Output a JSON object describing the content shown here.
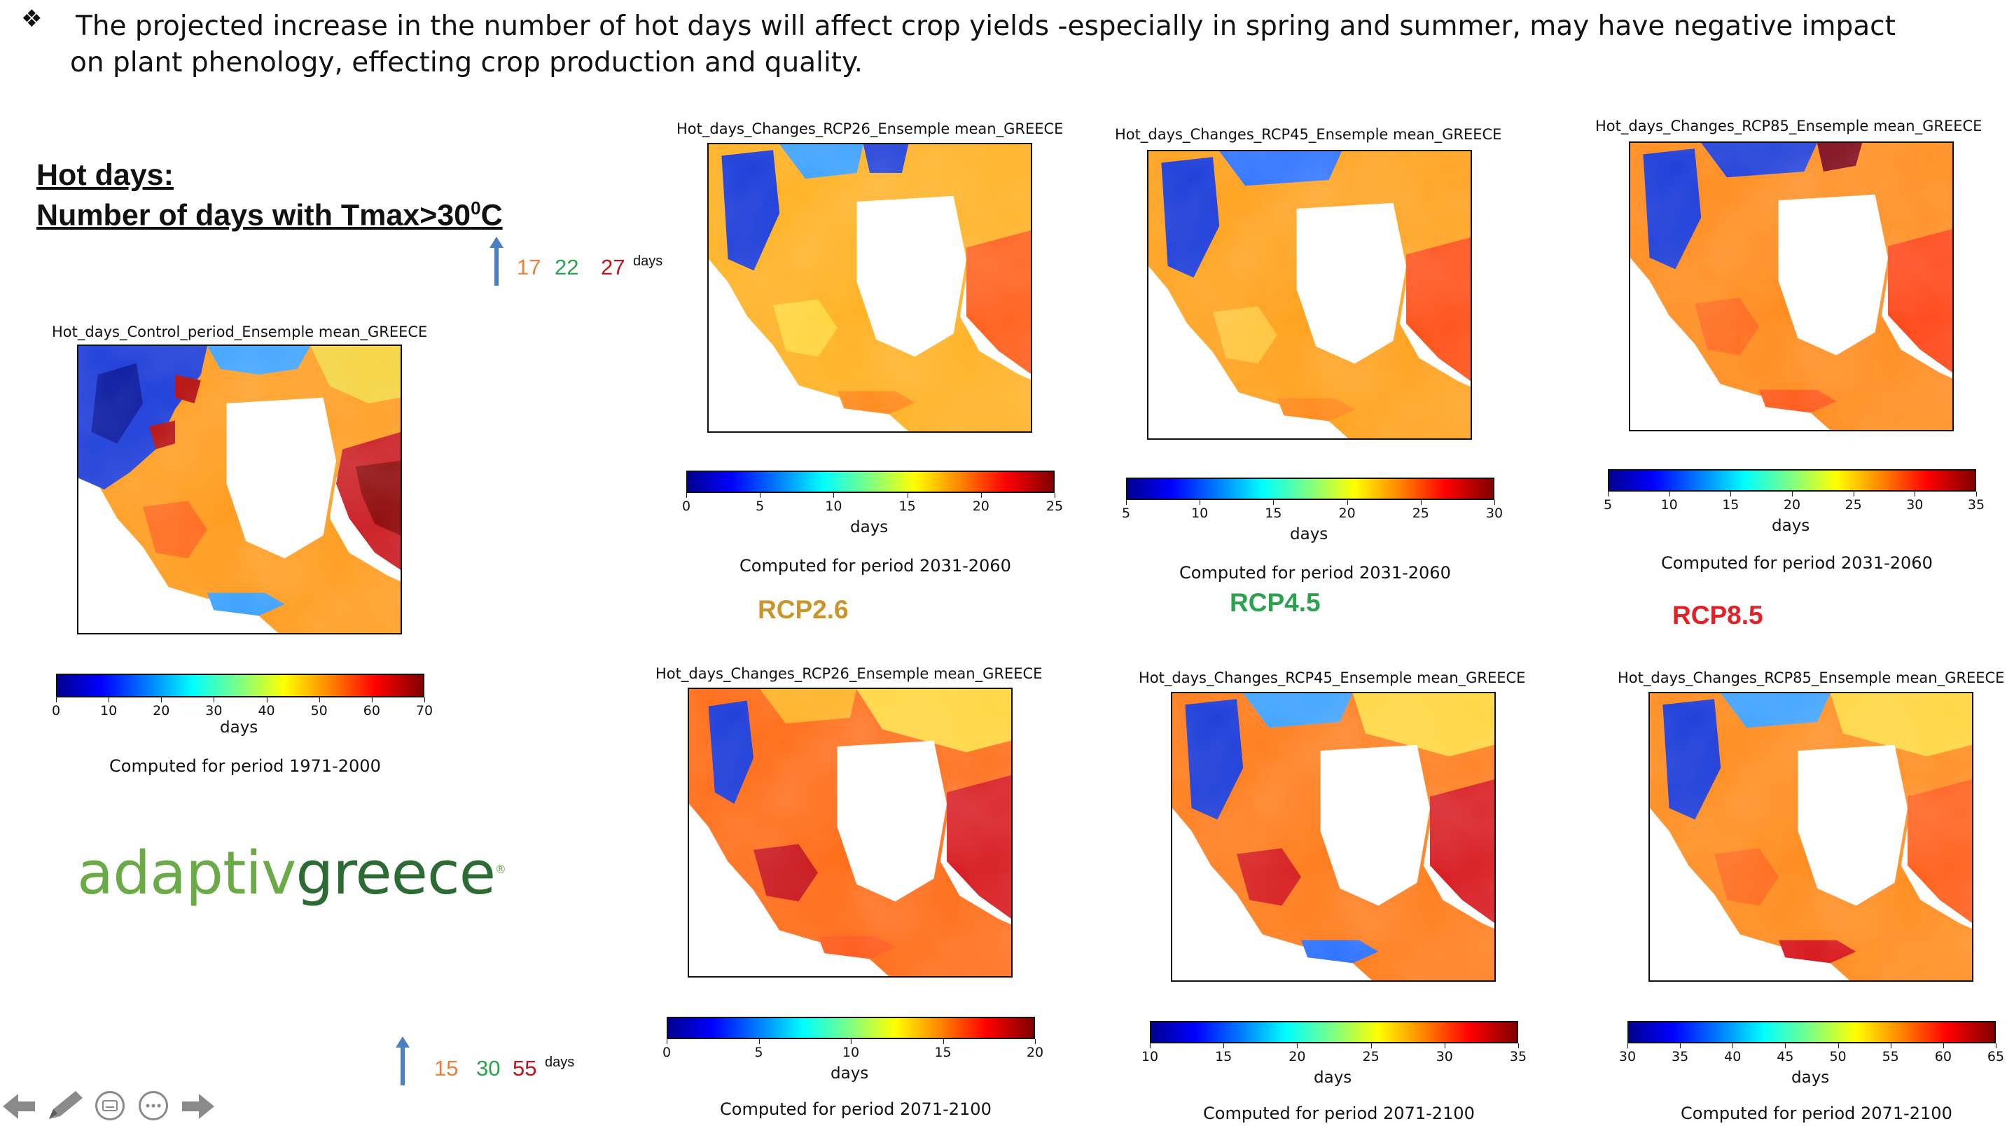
{
  "header": {
    "bullet_icon": "diamond-bullet-icon",
    "line1": "The projected increase in the number of  hot days will affect crop yields -especially in spring and summer, may have  negative impact",
    "line2": "on plant phenology, effecting crop production and quality."
  },
  "left": {
    "heading1": "Hot days:",
    "heading2_main": "Number of days with Tmax>30",
    "heading2_sup": "0",
    "heading2_end": "C",
    "top_values": [
      "17",
      "22",
      "27"
    ],
    "top_unit": "days",
    "bottom_values": [
      "15",
      "30",
      "55"
    ],
    "bottom_unit": "days"
  },
  "colors": {
    "rcp26": "#c8962a",
    "rcp45": "#2ba24c",
    "rcp85": "#e41f26",
    "val_orange": "#e8823a",
    "val_green": "#2ba24c",
    "val_red": "#c0141a",
    "logo_light": "#6aab47",
    "logo_dark": "#2d6b35"
  },
  "panels": {
    "control": {
      "title": "Hot_days_Control_period_Ensemple mean_GREECE",
      "ticks": [
        "0",
        "10",
        "20",
        "30",
        "40",
        "50",
        "60",
        "70"
      ],
      "unit": "days",
      "period": "Computed for period 1971-2000"
    },
    "rcp26_mid": {
      "title": "Hot_days_Changes_RCP26_Ensemple mean_GREECE",
      "ticks": [
        "0",
        "5",
        "10",
        "15",
        "20",
        "25"
      ],
      "unit": "days",
      "period": "Computed for period 2031-2060"
    },
    "rcp45_mid": {
      "title": "Hot_days_Changes_RCP45_Ensemple mean_GREECE",
      "ticks": [
        "5",
        "10",
        "15",
        "20",
        "25",
        "30"
      ],
      "unit": "days",
      "period": "Computed for period 2031-2060"
    },
    "rcp85_mid": {
      "title": "Hot_days_Changes_RCP85_Ensemple mean_GREECE",
      "ticks": [
        "5",
        "10",
        "15",
        "20",
        "25",
        "30",
        "35"
      ],
      "unit": "days",
      "period": "Computed for period 2031-2060"
    },
    "rcp26_end": {
      "title": "Hot_days_Changes_RCP26_Ensemple mean_GREECE",
      "ticks": [
        "0",
        "5",
        "10",
        "15",
        "20"
      ],
      "unit": "days",
      "period": "Computed for period 2071-2100"
    },
    "rcp45_end": {
      "title": "Hot_days_Changes_RCP45_Ensemple mean_GREECE",
      "ticks": [
        "10",
        "15",
        "20",
        "25",
        "30",
        "35"
      ],
      "unit": "days",
      "period": "Computed for period 2071-2100"
    },
    "rcp85_end": {
      "title": "Hot_days_Changes_RCP85_Ensemple mean_GREECE",
      "ticks": [
        "30",
        "35",
        "40",
        "45",
        "50",
        "55",
        "60",
        "65"
      ],
      "unit": "days",
      "period": "Computed for period 2071-2100"
    }
  },
  "rcp_labels": {
    "rcp26": "RCP2.6",
    "rcp45": "RCP4.5",
    "rcp85": "RCP8.5"
  },
  "logo": {
    "part1": "adaptiv",
    "part2": "greece",
    "mark": "®"
  },
  "nav_toolbar": {
    "icons": [
      "back-arrow-icon",
      "pen-icon",
      "subtitles-icon",
      "more-options-icon",
      "forward-arrow-icon"
    ]
  }
}
